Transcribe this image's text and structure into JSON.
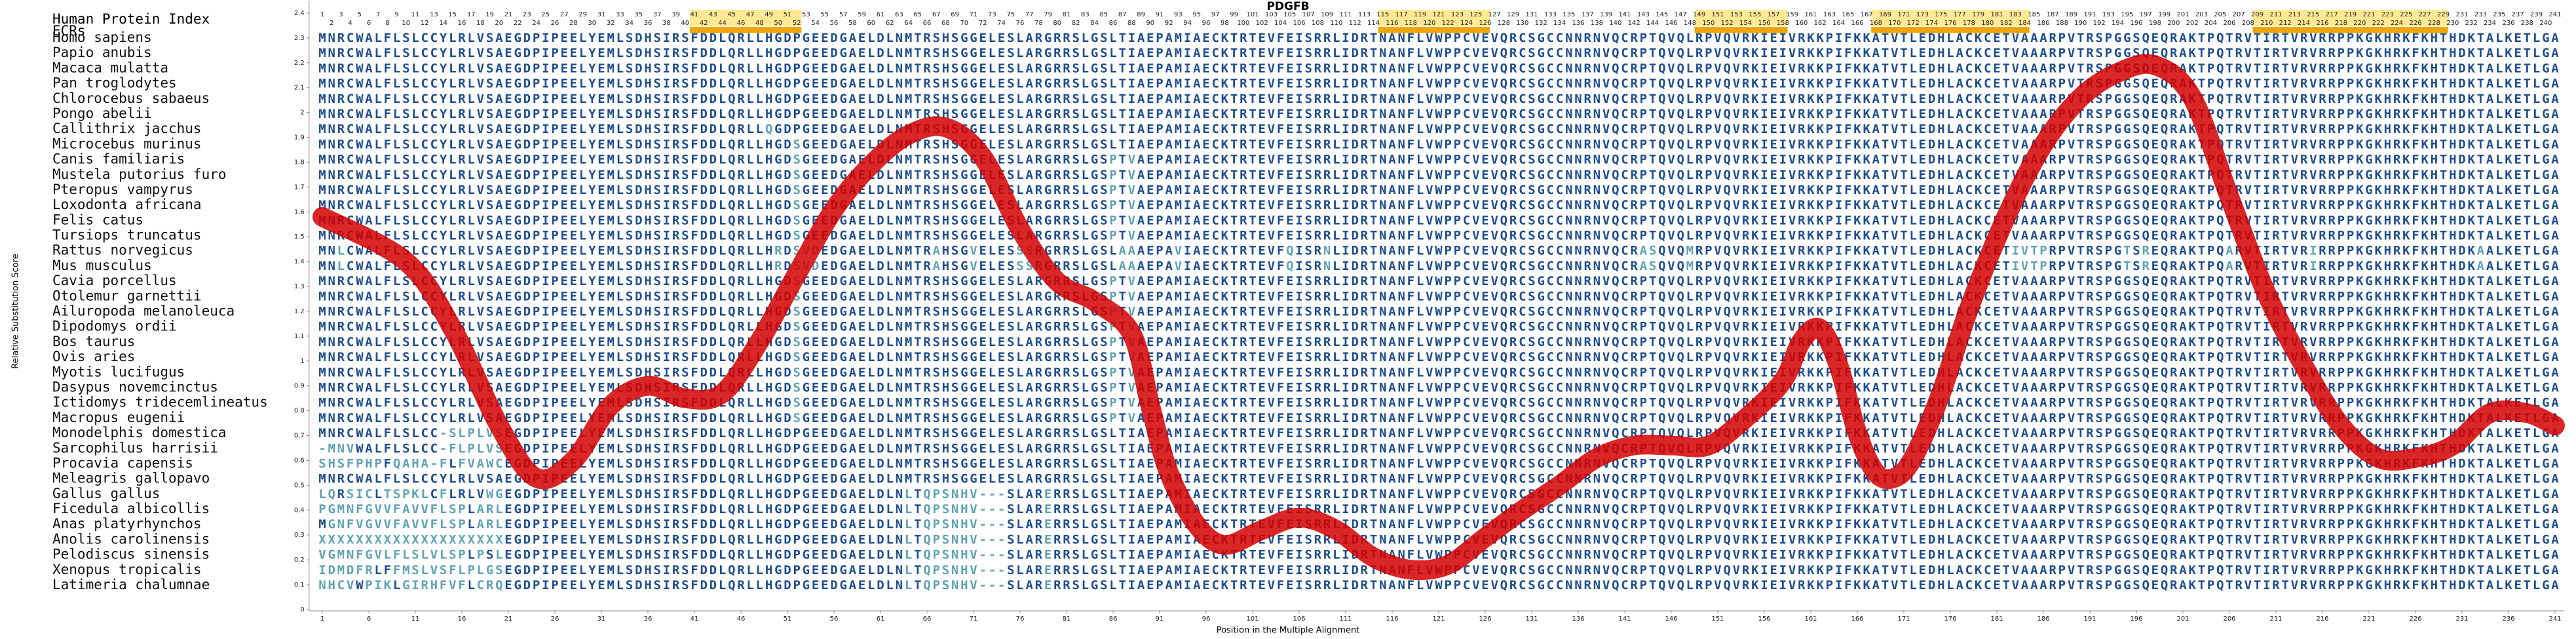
{
  "chart_data": {
    "type": "line",
    "title": "PDGFB",
    "index_label": "Human Protein Index",
    "ecr_label": "ECRs",
    "xlabel": "Position in the Multiple Alignment",
    "ylabel": "Relative Substitution Score",
    "color": "#d40000",
    "xlim": [
      0,
      242
    ],
    "ylim": [
      0,
      2.45
    ],
    "yticks": [
      0,
      0.1,
      0.2,
      0.3,
      0.4,
      0.5,
      0.6,
      0.7,
      0.8,
      0.9,
      1,
      1.1,
      1.2,
      1.3,
      1.4,
      1.5,
      1.6,
      1.7,
      1.8,
      1.9,
      2,
      2.1,
      2.2,
      2.3,
      2.4
    ],
    "xticks": [
      1,
      6,
      11,
      16,
      21,
      26,
      31,
      36,
      41,
      46,
      51,
      56,
      61,
      66,
      71,
      76,
      81,
      86,
      91,
      96,
      101,
      106,
      111,
      116,
      121,
      126,
      131,
      136,
      141,
      146,
      151,
      156,
      161,
      166,
      171,
      176,
      181,
      186,
      191,
      196,
      201,
      206,
      211,
      216,
      221,
      226,
      231,
      236,
      241
    ],
    "positions": [
      1,
      2,
      3,
      4,
      5,
      6,
      7,
      8,
      9,
      10,
      11,
      12,
      13,
      14,
      15,
      16,
      17,
      18,
      19,
      20,
      21,
      22,
      23,
      24,
      25,
      26,
      27,
      28,
      29,
      30,
      31,
      32,
      33,
      34,
      35,
      36,
      37,
      38,
      39,
      40,
      41,
      42,
      43,
      44,
      45,
      46,
      47,
      48,
      49,
      50,
      51,
      52,
      53,
      54,
      55,
      56,
      57,
      58,
      59,
      60,
      61,
      62,
      63,
      64,
      65,
      66,
      67,
      68,
      69,
      70,
      71,
      72,
      73,
      74,
      75,
      76,
      77,
      78,
      79,
      80,
      81,
      82,
      83,
      84,
      85,
      86,
      87,
      88,
      89,
      90,
      91,
      92,
      93,
      94,
      95,
      96,
      97,
      98,
      99,
      100,
      101,
      102,
      103,
      104,
      105,
      106,
      107,
      108,
      109,
      110,
      111,
      112,
      113,
      114,
      115,
      116,
      117,
      118,
      119,
      120,
      121,
      122,
      123,
      124,
      125,
      126,
      127,
      128,
      129,
      130,
      131,
      132,
      133,
      134,
      135,
      136,
      137,
      138,
      139,
      140,
      141,
      142,
      143,
      144,
      145,
      146,
      147,
      148,
      149,
      150,
      151,
      152,
      153,
      154,
      155,
      156,
      157,
      158,
      159,
      160,
      161,
      162,
      163,
      164,
      165,
      166,
      167,
      168,
      169,
      170,
      171,
      172,
      173,
      174,
      175,
      176,
      177,
      178,
      179,
      180,
      181,
      182,
      183,
      184,
      185,
      186,
      187,
      188,
      189,
      190,
      191,
      192,
      193,
      194,
      195,
      196,
      197,
      198,
      199,
      200,
      201,
      202,
      203,
      204,
      205,
      206,
      207,
      208,
      209,
      210,
      211,
      212,
      213,
      214,
      215,
      216,
      217,
      218,
      219,
      220,
      221,
      222,
      223,
      224,
      225,
      226,
      227,
      228,
      229,
      230,
      231,
      232,
      233,
      234,
      235,
      236,
      237,
      238,
      239,
      240,
      241
    ],
    "ecrs": [
      [
        41,
        52
      ],
      [
        115,
        126
      ],
      [
        149,
        158
      ],
      [
        168,
        184
      ],
      [
        209,
        229
      ]
    ],
    "ecr_color": "#f0a500",
    "x": [
      1,
      10,
      15,
      20,
      24,
      28,
      32,
      36,
      40,
      44,
      48,
      52,
      56,
      60,
      64,
      68,
      72,
      76,
      80,
      84,
      88,
      90,
      92,
      95,
      98,
      102,
      106,
      110,
      114,
      118,
      122,
      126,
      130,
      134,
      138,
      142,
      146,
      150,
      154,
      158,
      160,
      162,
      164,
      166,
      168,
      170,
      172,
      175,
      178,
      182,
      186,
      190,
      194,
      198,
      202,
      206,
      210,
      214,
      218,
      222,
      226,
      230,
      234,
      238,
      241
    ],
    "values": [
      1.58,
      1.4,
      1.13,
      0.74,
      0.53,
      0.6,
      0.82,
      0.9,
      0.85,
      0.87,
      1.08,
      1.35,
      1.61,
      1.79,
      1.91,
      1.94,
      1.82,
      1.53,
      1.32,
      1.24,
      1.11,
      0.82,
      0.55,
      0.34,
      0.26,
      0.32,
      0.37,
      0.32,
      0.21,
      0.16,
      0.18,
      0.29,
      0.4,
      0.5,
      0.61,
      0.66,
      0.66,
      0.66,
      0.77,
      0.92,
      1.08,
      1.13,
      0.98,
      0.71,
      0.55,
      0.53,
      0.61,
      0.87,
      1.21,
      1.58,
      1.87,
      2.06,
      2.16,
      2.19,
      2.06,
      1.66,
      1.27,
      0.98,
      0.74,
      0.61,
      0.61,
      0.66,
      0.79,
      0.79,
      0.74
    ],
    "species": [
      "Homo sapiens",
      "Papio anubis",
      "Macaca mulatta",
      "Pan troglodytes",
      "Chlorocebus sabaeus",
      "Pongo abelii",
      "Callithrix jacchus",
      "Microcebus murinus",
      "Canis familiaris",
      "Mustela putorius furo",
      "Pteropus vampyrus",
      "Loxodonta africana",
      "Felis catus",
      "Tursiops truncatus",
      "Rattus norvegicus",
      "Mus musculus",
      "Cavia porcellus",
      "Otolemur garnettii",
      "Ailuropoda melanoleuca",
      "Dipodomys ordii",
      "Bos taurus",
      "Ovis aries",
      "Myotis lucifugus",
      "Dasypus novemcinctus",
      "Ictidomys tridecemlineatus",
      "Macropus eugenii",
      "Monodelphis domestica",
      "Sarcophilus harrisii",
      "Procavia capensis",
      "Meleagris gallopavo",
      "Gallus gallus",
      "Ficedula albicollis",
      "Anas platyrhynchos",
      "Anolis carolinensis",
      "Pelodiscus sinensis",
      "Xenopus tropicalis",
      "Latimeria chalumnae"
    ],
    "sequences": [
      "MNRCWALFLSLCCYLRLVSAEGDPIPEELYEMLSDHSIRSFDDLQRLLHGDPGEEDGAELDLNMTRSHSGGELESLARGRRSLGSLTIAEPAMIAECKTRTEVFEISRRLIDRTNANFLVWPPCVEVQRCSGCCNNRNVQCRPTQVQLRPVQVRKIEIVRKKPIFKKATVTLEDHLACKCETVAAARPVTRSPGGSQEQRAKTPQTRVTIRTVRVRRPPKGKHRKFKHTHDKTALKETLGA",
      "MNRCWALFLSLCCYLRLVSAEGDPIPEELYEMLSDHSIRSFDDLQRLLHGDPGEEDGAELDLNMTRSHSGGELESLARGRRSLGSLTIAEPAMIAECKTRTEVFEISRRLIDRTNANFLVWPPCVEVQRCSGCCNNRNVQCRPTQVQLRPVQVRKIEIVRKKPIFKKATVTLEDHLACKCETVAAARPVTRSPGGSQEQRAKTPQTRVTIRTVRVRRPPKGKHRKFKHTHDKTALKETLGA",
      "MNRCWALFLSLCCYLRLVSAEGDPIPEELYEMLSDHSIRSFDDLQRLLHGDPGEEDGAELDLNMTRSHSGGELESLARGRRSLGSLTIAEPAMIAECKTRTEVFEISRRLIDRTNANFLVWPPCVEVQRCSGCCNNRNVQCRPTQVQLRPVQVRKIEIVRKKPIFKKATVTLEDHLACKCETVAAARPVTRSPGGSQEQRAKTPQTRVTIRTVRVRRPPKGKHRKFKHTHDKTALKETLGA",
      "MNRCWALFLSLCCYLRLVSAEGDPIPEELYEMLSDHSIRSFDDLQRLLHGDPGEEDGAELDLNMTRSHSGGELESLARGRRSLGSLTIAEPAMIAECKTRTEVFEISRRLIDRTNANFLVWPPCVEVQRCSGCCNNRNVQCRPTQVQLRPVQVRKIEIVRKKPIFKKATVTLEDHLACKCETVAAARPVTRSPGGSQEQRAKTPQTRVTIRTVRVRRPPKGKHRKFKHTHDKTALKETLGA",
      "MNRCWALFLSLCCYLRLVSAEGDPIPEELYEMLSDHSIRSFDDLQRLLHGDPGEEDGAELDLNMTRSHSGGELESLARGRRSLGSLTIAEPAMIAECKTRTEVFEISRRLIDRTNANFLVWPPCVEVQRCSGCCNNRNVQCRPTQVQLRPVQVRKIEIVRKKPIFKKATVTLEDHLACKCETVAAARPVTRSPGGSQEQRAKTPQTRVTIRTVRVRRPPKGKHRKFKHTHDKTALKETLGA",
      "MNRCWALFLSLCCYLRLVSAEGDPIPEELYEMLSDHSIRSFDDLQRLLHGDPGEEDGAELDLNMTRSHSGGELESLARGRRSLGSLTIAEPAMIAECKTRTEVFEISRRLIDRTNANFLVWPPCVEVQRCSGCCNNRNVQCRPTQVQLRPVQVRKIEIVRKKPIFKKATVTLEDHLACKCETVAAARPVTRSPGGSQEQRAKTPQTRVTIRTVRVRRPPKGKHRKFKHTHDKTALKETLGA",
      "MNRCWALFLSLCCYLRLVSAEGDPIPEELYEMLSDHSIRSFDDLQRLLQGDPGEEDGAELDLNMTRSHSGGELESLARGRRSLGSLTIAEPAMIAECKTRTEVFEISRRLIDRTNANFLVWPPCVEVQRCSGCCNNRNVQCRPTQVQLRPVQVRKIEIVRKKPIFKKATVTLEDHLACKCETVAAARPVTRSPGGSQEQRAKTPQTRVTIRTVRVRRPPKGKHRKFKHTHDKTALKETLGA",
      "MNRCWALFLSLCCYLRLVSAEGDPIPEELYEMLSDHSIRSFDDLQRLLHGDSGEEDGAELDLNMTRSHSGGELESLARGRRSLGSLTIAEPAMIAECKTRTEVFEISRRLIDRTNANFLVWPPCVEVQRCSGCCNNRNVQCRPTQVQLRPVQVRKIEIVRKKPIFKKATVTLEDHLACKCETVAAARPVTRSPGGSQEQRAKTPQTRVTIRTVRVRRPPKGKHRKFKHTHDKTALKETLGA",
      "MNRCWALFLSLCCYLRLVSAEGDPIPEELYEMLSDHSIRSFDDLQRLLHGDSGEEDGAELDLNMTRSHSGGELESLARGRRSLGSPTVAEPAMIAECKTRTEVFEISRRLIDRTNANFLVWPPCVEVQRCSGCCNNRNVQCRPTQVQLRPVQVRKIEIVRKKPIFKKATVTLEDHLACKCETVAAARPVTRSPGGSQEQRAKTPQTRVTIRTVRVRRPPKGKHRKFKHTHDKTALKETLGA",
      "MNRCWALFLSLCCYLRLVSAEGDPIPEELYEMLSDHSIRSFDDLQRLLHGDSGEEDGAELDLNMTRSHSGGELESLARGRRSLGSPTVAEPAMIAECKTRTEVFEISRRLIDRTNANFLVWPPCVEVQRCSGCCNNRNVQCRPTQVQLRPVQVRKIEIVRKKPIFKKATVTLEDHLACKCETVAAARPVTRSPGGSQEQRAKTPQTRVTIRTVRVRRPPKGKHRKFKHTHDKTALKETLGA",
      "MNRCWALFLSLCCYLRLVSAEGDPIPEELYEMLSDHSIRSFDDLQRLLHGDSGEEDGAELDLNMTRSHSGGELESLARGRRSLGSPTVAEPAMIAECKTRTEVFEISRRLIDRTNANFLVWPPCVEVQRCSGCCNNRNVQCRPTQVQLRPVQVRKIEIVRKKPIFKKATVTLEDHLACKCETVAAARPVTRSPGGSQEQRAKTPQTRVTIRTVRVRRPPKGKHRKFKHTHDKTALKETLGA",
      "MNRCWALFLSLCCYLRLVSAEGDPIPEELYEMLSDHSIRSFDDLQRLLHGDSGEEDGAELDLNMTRSHSGGELESLARGRRSLGSPTVAEPAMIAECKTRTEVFEISRRLIDRTNANFLVWPPCVEVQRCSGCCNNRNVQCRPTQVQLRPVQVRKIEIVRKKPIFKKATVTLEDHLACKCETVAAARPVTRSPGGSQEQRAKTPQTRVTIRTVRVRRPPKGKHRKFKHTHDKTALKETLGA",
      "MNRCWALFLSLCCYLRLVSAEGDPIPEELYEMLSDHSIRSFDDLQRLLHGDSGEEDGAELDLNMTRSHSGGELESLARGRRSLGSPTVAEPAMIAECKTRTEVFEISRRLIDRTNANFLVWPPCVEVQRCSGCCNNRNVQCRPTQVQLRPVQVRKIEIVRKKPIFKKATVTLEDHLACKCETVAAARPVTRSPGGSQEQRAKTPQTRVTIRTVRVRRPPKGKHRKFKHTHDKTALKETLGA",
      "MNRCWALFLSLCCYLRLVSAEGDPIPEELYEMLSDHSIRSFDDLQRLLHGDSGEEDGAELDLNMTRSHSGGELESLARGRRSLGSPTVAEPAMIAECKTRTEVFEISRRLIDRTNANFLVWPPCVEVQRCSGCCNNRNVQCRPTQVQLRPVQVRKIEIVRKKPIFKKATVTLEDHLACKCETVAAARPVTRSPGGSQEQRAKTPQTRVTIRTVRVRRPPKGKHRKFKHTHDKTALKETLGA",
      "MNLCWALFLSLCCYLRLVSAEGDPIPEELYEMLSDHSIRSFDDLQRLLHRDSVDEDGAELDLNMTRAHSGVELESSSRGRRSLGSLAAAEPAVIAECKTRTEVFQISRNLIDRTNANFLVWPPCVEVQRCSGCCNNRNVQCRASQVQMRPVQVRKIEIVRKKPIFKKATVTLEDHLACKCETIVTPRPVTRSPGTSREQRAKTPQARVTIRTVRIRRPPKGKHRKFKHTHDKAALKETLGA",
      "MNLCWALFLSLCCYLRLVSAEGDPIPEELYEMLSDHSIRSFDDLQRLLHRDSVDEDGAELDLNMTRAHSGVELESSSRGRRSLGSLAAAEPAVIAECKTRTEVFQISRNLIDRTNANFLVWPPCVEVQRCSGCCNNRNVQCRASQVQMRPVQVRKIEIVRKKPIFKKATVTLEDHLACKCETIVTPRPVTRSPGTSREQRAKTPQARVTIRTVRIRRPPKGKHRKFKHTHDKAALKETLGA",
      "MNRCWALFLSLCCYLRLVSAEGDPIPEELYEMLSDHSIRSFDDLQRLLHGDSGEEDGAELDLNMTRSHSGGELESLARGRRSLGSPTVAEPAMIAECKTRTEVFEISRRLIDRTNANFLVWPPCVEVQRCSGCCNNRNVQCRPTQVQLRPVQVRKIEIVRKKPIFKKATVTLEDHLACKCETVAAARPVTRSPGGSQEQRAKTPQTRVTIRTVRVRRPPKGKHRKFKHTHDKTALKETLGA",
      "MNRCWALFLSLCCYLRLVSAEGDPIPEELYEMLSDHSIRSFDDLQRLLHGDSGEEDGAELDLNMTRSHSGGELESLARGRRSLGSPTVAEPAMIAECKTRTEVFEISRRLIDRTNANFLVWPPCVEVQRCSGCCNNRNVQCRPTQVQLRPVQVRKIEIVRKKPIFKKATVTLEDHLACKCETVAAARPVTRSPGGSQEQRAKTPQTRVTIRTVRVRRPPKGKHRKFKHTHDKTALKETLGA",
      "MNRCWALFLSLCCYLRLVSAEGDPIPEELYEMLSDHSIRSFDDLQRLLHGDSGEEDGAELDLNMTRSHSGGELESLARGRRSLGSPTVAEPAMIAECKTRTEVFEISRRLIDRTNANFLVWPPCVEVQRCSGCCNNRNVQCRPTQVQLRPVQVRKIEIVRKKPIFKKATVTLEDHLACKCETVAAARPVTRSPGGSQEQRAKTPQTRVTIRTVRVRRPPKGKHRKFKHTHDKTALKETLGA",
      "MNRCWALFLSLCCYLRLVSAEGDPIPEELYEMLSDHSIRSFDDLQRLLHGDSGEEDGAELDLNMTRSHSGGELESLARGRRSLGSPTVAEPAMIAECKTRTEVFEISRRLIDRTNANFLVWPPCVEVQRCSGCCNNRNVQCRPTQVQLRPVQVRKIEIVRKKPIFKKATVTLEDHLACKCETVAAARPVTRSPGGSQEQRAKTPQTRVTIRTVRVRRPPKGKHRKFKHTHDKTALKETLGA",
      "MNRCWALFLSLCCYLRLVSAEGDPIPEELYEMLSDHSIRSFDDLQRLLHGDSGEEDGAELDLNMTRSHSGGELESLARGRRSLGSPTVAEPAMIAECKTRTEVFEISRRLIDRTNANFLVWPPCVEVQRCSGCCNNRNVQCRPTQVQLRPVQVRKIEIVRKKPIFKKATVTLEDHLACKCETVAAARPVTRSPGGSQEQRAKTPQTRVTIRTVRVRRPPKGKHRKFKHTHDKTALKETLGA",
      "MNRCWALFLSLCCYLRLVSAEGDPIPEELYEMLSDHSIRSFDDLQRLLHGDSGEEDGAELDLNMTRSHSGGELESLARGRRSLGSPTVAEPAMIAECKTRTEVFEISRRLIDRTNANFLVWPPCVEVQRCSGCCNNRNVQCRPTQVQLRPVQVRKIEIVRKKPIFKKATVTLEDHLACKCETVAAARPVTRSPGGSQEQRAKTPQTRVTIRTVRVRRPPKGKHRKFKHTHDKTALKETLGA",
      "MNRCWALFLSLCCYLRLVSAEGDPIPEELYEMLSDHSIRSFDDLQRLLHGDSGEEDGAELDLNMTRSHSGGELESLARGRRSLGSPTVAEPAMIAECKTRTEVFEISRRLIDRTNANFLVWPPCVEVQRCSGCCNNRNVQCRPTQVQLRPVQVRKIEIVRKKPIFKKATVTLEDHLACKCETVAAARPVTRSPGGSQEQRAKTPQTRVTIRTVRVRRPPKGKHRKFKHTHDKTALKETLGA",
      "MNRCWALFLSLCCYLRLVSAEGDPIPEELYEMLSDHSIRSFDDLQRLLHGDSGEEDGAELDLNMTRSHSGGELESLARGRRSLGSPTVAEPAMIAECKTRTEVFEISRRLIDRTNANFLVWPPCVEVQRCSGCCNNRNVQCRPTQVQLRPVQVRKIEIVRKKPIFKKATVTLEDHLACKCETVAAARPVTRSPGGSQEQRAKTPQTRVTIRTVRVRRPPKGKHRKFKHTHDKTALKETLGA",
      "MNRCWALFLSLCCYLRLVSAEGDPIPEELYEMLSDHSIRSFDDLQRLLHGDSGEEDGAELDLNMTRSHSGGELESLARGRRSLGSPTVAEPAMIAECKTRTEVFEISRRLIDRTNANFLVWPPCVEVQRCSGCCNNRNVQCRPTQVQLRPVQVRKIEIVRKKPIFKKATVTLEDHLACKCETVAAARPVTRSPGGSQEQRAKTPQTRVTIRTVRVRRPPKGKHRKFKHTHDKTALKETLGA",
      "MNRCWALFLSLCCYLRLVSAEGDPIPEELYEMLSDHSIRSFDDLQRLLHGDSGEEDGAELDLNMTRSHSGGELESLARGRRSLGSPTVAEPAMIAECKTRTEVFEISRRLIDRTNANFLVWPPCVEVQRCSGCCNNRNVQCRPTQVQLRPVQVRKIEIVRKKPIFKKATVTLEDHLACKCETVAAARPVTRSPGGSQEQRAKTPQTRVTIRTVRVRRPPKGKHRKFKHTHDKTALKETLGA",
      "MNRCWALFLSLCC-SLPLVSEGDPIPEELYEMLSDHSIRSFDDLQRLLHGDPGEEDGAELDLNMTRSHSGGELESLARGRRSLGSLTIAEPAMIAECKTRTEVFEISRRLIDRTNANFLVWPPCVEVQRCSGCCNNRNVQCRPTQVQLRPVQVRKIEIVRKKPIFKKATVTLEDHLACKCETVAAARPVTRSPGGSQEQRAKTPQTRVTIRTVRVRRPPKGKHRKFKHTHDKTALKETLGA",
      "-MNVWALFLSLCC-FLPLVSEGDPIPEELYEMLSDHSIRSFDDLQRLLHGDPGEEDGAELDLNMTRSHSGGELESLARGRRSLGSLTIAEPAMIAECKTRTEVFEISRRLIDRTNANFLVWPPCVEVQRCSGCCNNRNVQCRPTQVQLRPVQVRKIEIVRKKPIFKKATVTLEDHLACKCETVAAARPVTRSPGGSQEQRAKTPQTRVTIRTVRVRRPPKGKHRKFKHTHDKTALKETLGA",
      "SHSFPHPFQAHA-FLFVAWCEGDPIPEELYEMLSDHSIRSFDDLQRLLHGDPGEEDGAELDLNMTRSHSGGELESLARGRRSLGSLTIAEPAMIAECKTRTEVFEISRRLIDRTNANFLVWPPCVEVQRCSGCCNNRNVQCRPTQVQLRPVQVRKIEIVRKKPIFKKATVTLEDHLACKCETVAAARPVTRSPGGSQEQRAKTPQTRVTIRTVRVRRPPKGKHRKFKHTHDKTALKETLGA",
      "MNRCWALFLSLCCYLRLVSAEGDPIPEELYEMLSDHSIRSFDDLQRLLHGDPGEEDGAELDLNMTRSHSGGELESLARGRRSLGSLTIAEPAMIAECKTRTEVFEISRRLIDRTNANFLVWPPCVEVQRCSGCCNNRNVQCRPTQVQLRPVQVRKIEIVRKKPIFKKATVTLEDHLACKCETVAAARPVTRSPGGSQEQRAKTPQTRVTIRTVRVRRPPKGKHRKFKHTHDKTALKETLGA",
      "LQRSICLTSPKLCFLRLVWGEGDPIPEELYEMLSDHSIRSFDDLQRLLHGDPGEEDGAELDLNLTQPSNHV---SLARERRSLGSLTIAEPAMIAECKTRTEVFEISRRLIDRTNANFLVWPPCVEVQRCSGCCNNRNVQCRPTQVQLRPVQVRKIEIVRKKPIFKKATVTLEDHLACKCETVAAARPVTRSPGGSQEQRAKTPQTRVTIRTVRVRRPPKGKHRKFKHTHDKTALKETLGA",
      "PGMNFGVVFAVVFLSPLARLEGDPIPEELYEMLSDHSIRSFDDLQRLLHGDPGEEDGAELDLNLTQPSNHV---SLARERRSLGSLTIAEPAMIAECKTRTEVFEISRRLIDRTNANFLVWPPCVEVQRCSGCCNNRNVQCRPTQVQLRPVQVRKIEIVRKKPIFKKATVTLEDHLACKCETVAAARPVTRSPGGSQEQRAKTPQTRVTIRTVRVRRPPKGKHRKFKHTHDKTALKETLGA",
      "MGNFVGVVFAVVFLSPLARLEGDPIPEELYEMLSDHSIRSFDDLQRLLHGDPGEEDGAELDLNLTQPSNHV---SLARERRSLGSLTIAEPAMIAECKTRTEVFEISRRLIDRTNANFLVWPPCVEVQRCSGCCNNRNVQCRPTQVQLRPVQVRKIEIVRKKPIFKKATVTLEDHLACKCETVAAARPVTRSPGGSQEQRAKTPQTRVTIRTVRVRRPPKGKHRKFKHTHDKTALKETLGA",
      "XXXXXXXXXXXXXXXXXXXXEGDPIPEELYEMLSDHSIRSFDDLQRLLHGDPGEEDGAELDLNLTQPSNHV---SLARERRSLGSLTIAEPAMIAECKTRTEVFEISRRLIDRTNANFLVWPPCVEVQRCSGCCNNRNVQCRPTQVQLRPVQVRKIEIVRKKPIFKKATVTLEDHLACKCETVAAARPVTRSPGGSQEQRAKTPQTRVTIRTVRVRRPPKGKHRKFKHTHDKTALKETLGA",
      "VGMNFGVLFLSLVLSPLPSLEGDPIPEELYEMLSDHSIRSFDDLQRLLHGDPGEEDGAELDLNLTQPSNHV---SLARERRSLGSLTIAEPAMIAECKTRTEVFEISRRLIDRTNANFLVWPPCVEVQRCSGCCNNRNVQCRPTQVQLRPVQVRKIEIVRKKPIFKKATVTLEDHLACKCETVAAARPVTRSPGGSQEQRAKTPQTRVTIRTVRVRRPPKGKHRKFKHTHDKTALKETLGA",
      "IDMDFRLFFMSLVSFLPLGSEGDPIPEELYEMLSDHSIRSFDDLQRLLHGDPGEEDGAELDLNLTQPSNHV---SLARERRSLGSLTIAEPAMIAECKTRTEVFEISRRLIDRTNANFLVWPPCVEVQRCSGCCNNRNVQCRPTQVQLRPVQVRKIEIVRKKPIFKKATVTLEDHLACKCETVAAARPVTRSPGGSQEQRAKTPQTRVTIRTVRVRRPPKGKHRKFKHTHDKTALKETLGA",
      "NHCVWPIKLGIRHFVFLCRQEGDPIPEELYEMLSDHSIRSFDDLQRLLHGDPGEEDGAELDLNLTQPSNHV---SLARERRSLGSLTIAEPAMIAECKTRTEVFEISRRLIDRTNANFLVWPPCVEVQRCSGCCNNRNVQCRPTQVQLRPVQVRKIEIVRKKPIFKKATVTLEDHLACKCETVAAARPVTRSPGGSQEQRAKTPQTRVTIRTVRVRRPPKGKHRKFKHTHDKTALKETLGA",
      "XXXXXXXXXXXXXXXXXXXXEGDPIPEELYEMLSDHSIRSFDDLQRLLHGDPGEEDGAELDLNLTQPSNHV---SLARERRSLGSLTIAEPAMIAECKTRTEVFEISRRLIDRTNANFLVWPPCVEVQRCSGCCNNRNVQCRPTQVQLRPVQVRKIEIVRKKPIFKKATVTLEDHLACKCETVAAARPVTRSPGGSQEQRAKTPQTRVTIRTVRVRRPPKGKHRKFKHTHDKTALKETLGA"
    ]
  }
}
